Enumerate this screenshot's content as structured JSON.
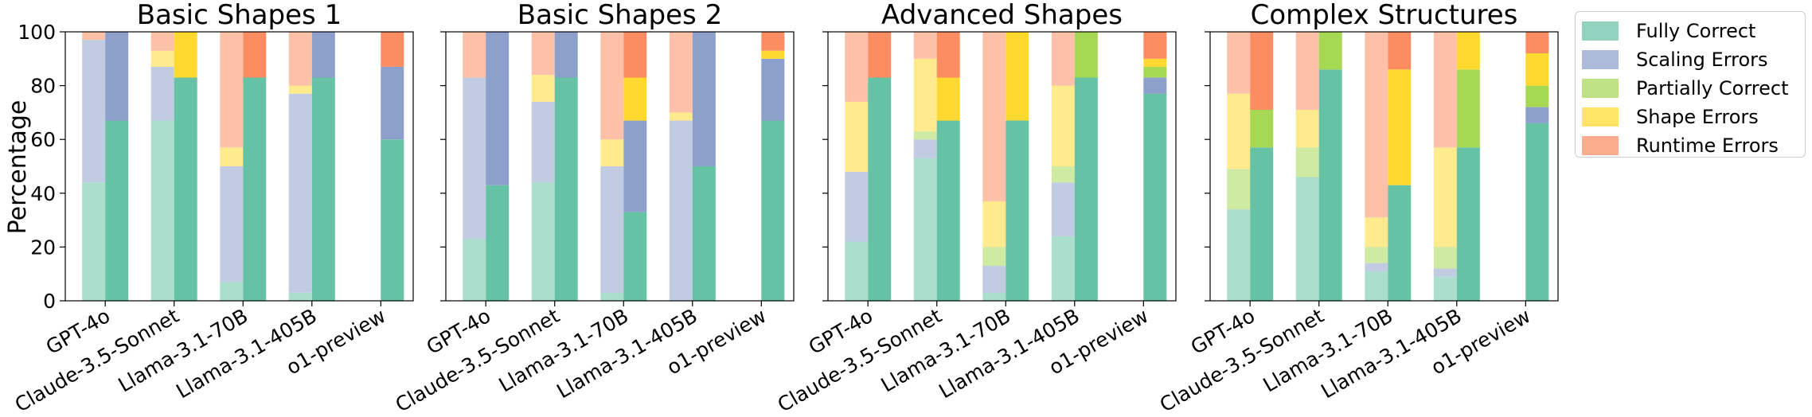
{
  "figure": {
    "ylabel": "Percentage",
    "yticks": [
      0,
      20,
      40,
      60,
      80,
      100
    ],
    "ylim": [
      0,
      100
    ]
  },
  "legend": {
    "placement": "outside-top-right",
    "items": [
      {
        "label": "Fully Correct",
        "color": "#66c2a5"
      },
      {
        "label": "Scaling Errors",
        "color": "#8da0cb"
      },
      {
        "label": "Partially Correct",
        "color": "#a6d854"
      },
      {
        "label": "Shape Errors",
        "color": "#ffd92f"
      },
      {
        "label": "Runtime Errors",
        "color": "#fc8d62"
      }
    ]
  },
  "chart_data": [
    {
      "type": "bar",
      "stacked": true,
      "title": "Basic Shapes 1",
      "categories": [
        "GPT-4o",
        "Claude-3.5-Sonnet",
        "Llama-3.1-70B",
        "Llama-3.1-405B",
        "o1-preview"
      ],
      "ylabel": "Percentage",
      "ylim": [
        0,
        100
      ],
      "bar_groups": [
        {
          "style": "light",
          "series": [
            {
              "name": "Fully Correct",
              "values": [
                44,
                67,
                7,
                3,
                0
              ]
            },
            {
              "name": "Scaling Errors",
              "values": [
                53,
                20,
                43,
                74,
                0
              ]
            },
            {
              "name": "Partially Correct",
              "values": [
                0,
                0,
                0,
                0,
                0
              ]
            },
            {
              "name": "Shape Errors",
              "values": [
                0,
                6,
                7,
                3,
                0
              ]
            },
            {
              "name": "Runtime Errors",
              "values": [
                3,
                7,
                43,
                20,
                0
              ]
            }
          ]
        },
        {
          "style": "dark",
          "series": [
            {
              "name": "Fully Correct",
              "values": [
                67,
                83,
                83,
                83,
                60
              ]
            },
            {
              "name": "Scaling Errors",
              "values": [
                33,
                0,
                0,
                17,
                27
              ]
            },
            {
              "name": "Partially Correct",
              "values": [
                0,
                0,
                0,
                0,
                0
              ]
            },
            {
              "name": "Shape Errors",
              "values": [
                0,
                17,
                0,
                0,
                0
              ]
            },
            {
              "name": "Runtime Errors",
              "values": [
                0,
                0,
                17,
                0,
                13
              ]
            }
          ]
        }
      ]
    },
    {
      "type": "bar",
      "stacked": true,
      "title": "Basic Shapes 2",
      "categories": [
        "GPT-4o",
        "Claude-3.5-Sonnet",
        "Llama-3.1-70B",
        "Llama-3.1-405B",
        "o1-preview"
      ],
      "ylim": [
        0,
        100
      ],
      "bar_groups": [
        {
          "style": "light",
          "series": [
            {
              "name": "Fully Correct",
              "values": [
                23,
                44,
                3,
                0,
                0
              ]
            },
            {
              "name": "Scaling Errors",
              "values": [
                60,
                30,
                47,
                67,
                0
              ]
            },
            {
              "name": "Partially Correct",
              "values": [
                0,
                0,
                0,
                0,
                0
              ]
            },
            {
              "name": "Shape Errors",
              "values": [
                0,
                10,
                10,
                3,
                0
              ]
            },
            {
              "name": "Runtime Errors",
              "values": [
                17,
                16,
                40,
                30,
                0
              ]
            }
          ]
        },
        {
          "style": "dark",
          "series": [
            {
              "name": "Fully Correct",
              "values": [
                43,
                83,
                33,
                50,
                67
              ]
            },
            {
              "name": "Scaling Errors",
              "values": [
                57,
                17,
                34,
                50,
                23
              ]
            },
            {
              "name": "Partially Correct",
              "values": [
                0,
                0,
                0,
                0,
                0
              ]
            },
            {
              "name": "Shape Errors",
              "values": [
                0,
                0,
                16,
                0,
                3
              ]
            },
            {
              "name": "Runtime Errors",
              "values": [
                0,
                0,
                17,
                0,
                7
              ]
            }
          ]
        }
      ]
    },
    {
      "type": "bar",
      "stacked": true,
      "title": "Advanced Shapes",
      "categories": [
        "GPT-4o",
        "Claude-3.5-Sonnet",
        "Llama-3.1-70B",
        "Llama-3.1-405B",
        "o1-preview"
      ],
      "ylim": [
        0,
        100
      ],
      "bar_groups": [
        {
          "style": "light",
          "series": [
            {
              "name": "Fully Correct",
              "values": [
                22,
                53,
                3,
                24,
                0
              ]
            },
            {
              "name": "Scaling Errors",
              "values": [
                26,
                7,
                10,
                20,
                0
              ]
            },
            {
              "name": "Partially Correct",
              "values": [
                0,
                3,
                7,
                6,
                0
              ]
            },
            {
              "name": "Shape Errors",
              "values": [
                26,
                27,
                17,
                30,
                0
              ]
            },
            {
              "name": "Runtime Errors",
              "values": [
                26,
                10,
                63,
                20,
                0
              ]
            }
          ]
        },
        {
          "style": "dark",
          "series": [
            {
              "name": "Fully Correct",
              "values": [
                83,
                67,
                67,
                83,
                77
              ]
            },
            {
              "name": "Scaling Errors",
              "values": [
                0,
                0,
                0,
                0,
                6
              ]
            },
            {
              "name": "Partially Correct",
              "values": [
                0,
                0,
                0,
                17,
                4
              ]
            },
            {
              "name": "Shape Errors",
              "values": [
                0,
                16,
                33,
                0,
                3
              ]
            },
            {
              "name": "Runtime Errors",
              "values": [
                17,
                17,
                0,
                0,
                10
              ]
            }
          ]
        }
      ]
    },
    {
      "type": "bar",
      "stacked": true,
      "title": "Complex Structures",
      "categories": [
        "GPT-4o",
        "Claude-3.5-Sonnet",
        "Llama-3.1-70B",
        "Llama-3.1-405B",
        "o1-preview"
      ],
      "ylim": [
        0,
        100
      ],
      "bar_groups": [
        {
          "style": "light",
          "series": [
            {
              "name": "Fully Correct",
              "values": [
                34,
                46,
                11,
                9,
                0
              ]
            },
            {
              "name": "Scaling Errors",
              "values": [
                0,
                0,
                3,
                3,
                0
              ]
            },
            {
              "name": "Partially Correct",
              "values": [
                15,
                11,
                6,
                8,
                0
              ]
            },
            {
              "name": "Shape Errors",
              "values": [
                28,
                14,
                11,
                37,
                0
              ]
            },
            {
              "name": "Runtime Errors",
              "values": [
                23,
                29,
                69,
                43,
                0
              ]
            }
          ]
        },
        {
          "style": "dark",
          "series": [
            {
              "name": "Fully Correct",
              "values": [
                57,
                86,
                43,
                57,
                66
              ]
            },
            {
              "name": "Scaling Errors",
              "values": [
                0,
                0,
                0,
                0,
                6
              ]
            },
            {
              "name": "Partially Correct",
              "values": [
                14,
                14,
                0,
                29,
                8
              ]
            },
            {
              "name": "Shape Errors",
              "values": [
                0,
                0,
                43,
                14,
                12
              ]
            },
            {
              "name": "Runtime Errors",
              "values": [
                29,
                0,
                14,
                0,
                8
              ]
            }
          ]
        }
      ]
    }
  ]
}
